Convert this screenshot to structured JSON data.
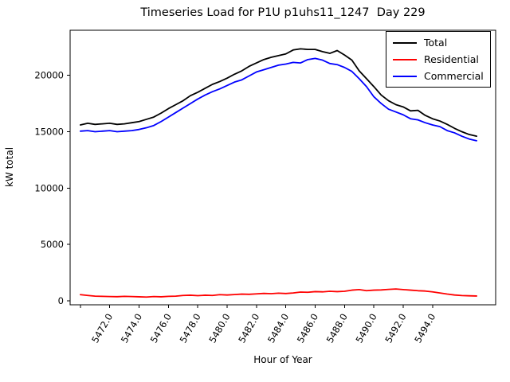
{
  "chart_data": {
    "type": "line",
    "title": "Timeseries Load for P1U p1uhs11_1247  Day 229",
    "xlabel": "Hour of Year",
    "ylabel": "kW total",
    "xlim": [
      5469.3,
      5498.3
    ],
    "ylim": [
      -350,
      24000
    ],
    "grid": false,
    "x_tick_rotation": 60,
    "x_tick_values": [
      5470,
      5472,
      5474,
      5476,
      5478,
      5480,
      5482,
      5484,
      5486,
      5488,
      5490,
      5492,
      5494
    ],
    "x_tick_labels": [
      "",
      "5472.0",
      "5474.0",
      "5476.0",
      "5478.0",
      "5480.0",
      "5482.0",
      "5484.0",
      "5486.0",
      "5488.0",
      "5490.0",
      "5492.0",
      "5494.0"
    ],
    "y_tick_values": [
      0,
      5000,
      10000,
      15000,
      20000
    ],
    "y_tick_labels": [
      "0",
      "5000",
      "10000",
      "15000",
      "20000"
    ],
    "x": [
      5470.0,
      5470.5,
      5471.0,
      5471.5,
      5472.0,
      5472.5,
      5473.0,
      5473.5,
      5474.0,
      5474.5,
      5475.0,
      5475.5,
      5476.0,
      5476.5,
      5477.0,
      5477.5,
      5478.0,
      5478.5,
      5479.0,
      5479.5,
      5480.0,
      5480.5,
      5481.0,
      5481.5,
      5482.0,
      5482.5,
      5483.0,
      5483.5,
      5484.0,
      5484.5,
      5485.0,
      5485.5,
      5486.0,
      5486.5,
      5487.0,
      5487.5,
      5488.0,
      5488.5,
      5489.0,
      5489.5,
      5490.0,
      5490.5,
      5491.0,
      5491.5,
      5492.0,
      5492.5,
      5493.0,
      5493.5,
      5494.0,
      5494.5,
      5495.0,
      5495.5,
      5496.0,
      5496.5,
      5497.0
    ],
    "series": [
      {
        "name": "Total",
        "color": "#000000",
        "values": [
          15600,
          15750,
          15650,
          15700,
          15750,
          15650,
          15700,
          15800,
          15900,
          16100,
          16300,
          16650,
          17050,
          17400,
          17750,
          18200,
          18500,
          18850,
          19200,
          19450,
          19750,
          20100,
          20400,
          20800,
          21100,
          21400,
          21600,
          21750,
          21900,
          22250,
          22350,
          22300,
          22300,
          22100,
          21950,
          22200,
          21800,
          21350,
          20400,
          19700,
          19000,
          18250,
          17750,
          17400,
          17200,
          16850,
          16900,
          16450,
          16150,
          15950,
          15650,
          15300,
          15000,
          14750,
          14600
        ]
      },
      {
        "name": "Residential",
        "color": "#ff0000",
        "values": [
          550,
          480,
          420,
          400,
          380,
          370,
          400,
          380,
          360,
          340,
          380,
          360,
          400,
          420,
          480,
          500,
          460,
          500,
          480,
          550,
          520,
          560,
          600,
          580,
          620,
          660,
          640,
          680,
          650,
          700,
          780,
          760,
          820,
          800,
          850,
          820,
          850,
          950,
          1000,
          900,
          950,
          970,
          1020,
          1050,
          1000,
          950,
          900,
          870,
          800,
          700,
          600,
          520,
          470,
          450,
          430
        ]
      },
      {
        "name": "Commercial",
        "color": "#0000ff",
        "values": [
          15050,
          15100,
          15000,
          15050,
          15100,
          15000,
          15050,
          15100,
          15200,
          15350,
          15550,
          15900,
          16300,
          16700,
          17100,
          17500,
          17900,
          18250,
          18550,
          18800,
          19100,
          19400,
          19600,
          19950,
          20300,
          20500,
          20700,
          20900,
          21000,
          21150,
          21100,
          21400,
          21500,
          21350,
          21050,
          20950,
          20700,
          20350,
          19700,
          19000,
          18100,
          17500,
          17000,
          16750,
          16500,
          16150,
          16050,
          15800,
          15600,
          15450,
          15100,
          14900,
          14600,
          14350,
          14200
        ]
      }
    ],
    "legend": {
      "position": "upper right",
      "entries": [
        "Total",
        "Residential",
        "Commercial"
      ]
    }
  }
}
